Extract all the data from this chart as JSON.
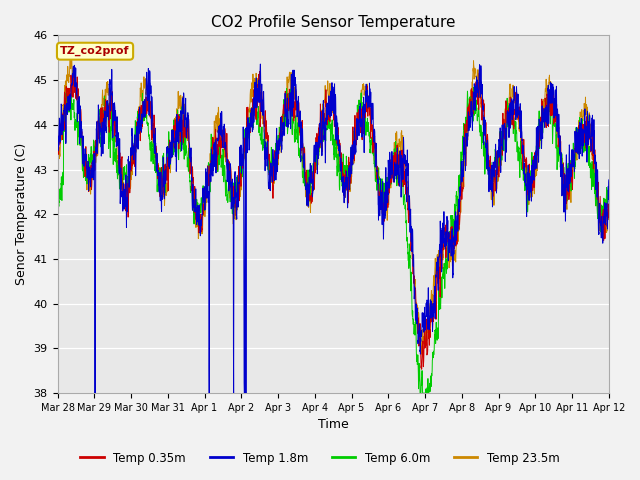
{
  "title": "CO2 Profile Sensor Temperature",
  "xlabel": "Time",
  "ylabel": "Senor Temperature (C)",
  "ylim": [
    38.0,
    46.0
  ],
  "yticks": [
    38.0,
    39.0,
    40.0,
    41.0,
    42.0,
    43.0,
    44.0,
    45.0,
    46.0
  ],
  "xtick_labels": [
    "Mar 28",
    "Mar 29",
    "Mar 30",
    "Mar 31",
    "Apr 1",
    "Apr 2",
    "Apr 3",
    "Apr 4",
    "Apr 5",
    "Apr 6",
    "Apr 7",
    "Apr 8",
    "Apr 9",
    "Apr 10",
    "Apr 11",
    "Apr 12"
  ],
  "colors": {
    "Temp 0.35m": "#cc0000",
    "Temp 1.8m": "#0000cc",
    "Temp 6.0m": "#00cc00",
    "Temp 23.5m": "#cc8800"
  },
  "legend_label": "TZ_co2prof",
  "legend_box_facecolor": "#ffffcc",
  "legend_box_edge": "#ccaa00",
  "plot_bg": "#e8e8e8",
  "fig_bg": "#f2f2f2",
  "grid_color": "#ffffff",
  "n_points": 3000,
  "seed": 7
}
